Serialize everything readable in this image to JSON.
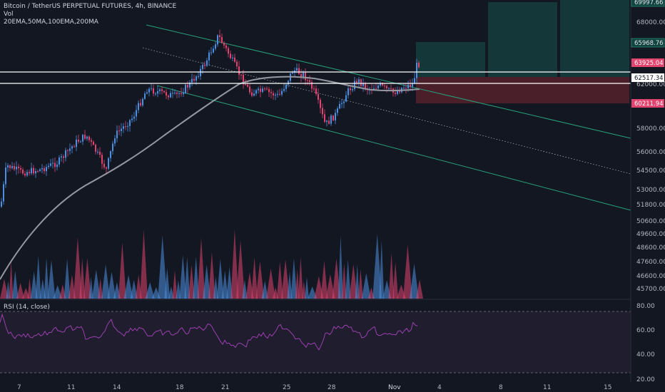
{
  "header": {
    "symbol_line": "Bitcoin / TetherUS PERPETUAL FUTURES, 4h, BINANCE",
    "vol_label": "Vol",
    "ema_label": "20EMA,50MA,100EMA,200MA",
    "rsi_label": "RSI (14, close)"
  },
  "colors": {
    "background": "#131722",
    "up": "#4c8fe0",
    "down": "#e0446f",
    "ema": "#9598a1",
    "channel": "#26a07b",
    "target_zone": "#14383a",
    "stop_zone": "#4a1f2a",
    "rsi_line": "#9c3fb0",
    "rsi_band": "#201d2e",
    "hline": "#ffffff"
  },
  "chart_data": {
    "type": "candlestick",
    "x_ticks": [
      "7",
      "11",
      "14",
      "18",
      "21",
      "25",
      "28",
      "Nov",
      "4",
      "8",
      "11",
      "15"
    ],
    "y_ticks": [
      "68000.00",
      "62000.00",
      "58000.00",
      "56000.00",
      "54500.00",
      "53000.00",
      "51800.00",
      "50600.00",
      "49600.00",
      "48600.00",
      "47600.00",
      "46600.00",
      "45700.00"
    ],
    "price_tags": [
      {
        "label": "69997.66",
        "kind": "target"
      },
      {
        "label": "65968.76",
        "kind": "target"
      },
      {
        "label": "63925.04",
        "kind": "current"
      },
      {
        "label": "62517.34",
        "kind": "level"
      },
      {
        "label": "60211.94",
        "kind": "stop"
      }
    ],
    "rsi_ticks": [
      "80.00",
      "60.00",
      "40.00",
      "20.00"
    ],
    "rsi_overbought": 70,
    "rsi_oversold": 30
  }
}
